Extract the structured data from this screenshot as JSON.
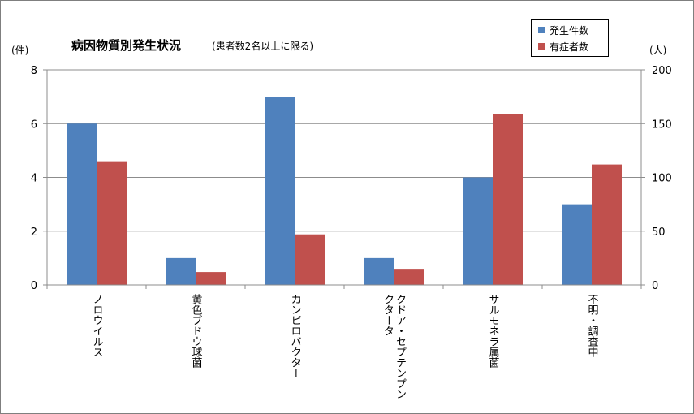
{
  "chart_data": {
    "type": "bar",
    "title": "病因物質別発生状況",
    "subtitle": "(患者数2名以上に限る)",
    "y_left_unit": "(件)",
    "y_right_unit": "(人)",
    "categories": [
      {
        "label": "ノロウイルス",
        "lines": [
          "ノロウイルス"
        ]
      },
      {
        "label": "黄色ブドウ球菌",
        "lines": [
          "黄色ブドウ球菌"
        ]
      },
      {
        "label": "カンピロバクター",
        "lines": [
          "カンピロバクター"
        ]
      },
      {
        "label": "クドア・セプテンプンクタータ",
        "lines": [
          "クドア・セプテンプン",
          "クタータ"
        ]
      },
      {
        "label": "サルモネラ属菌",
        "lines": [
          "サルモネラ属菌"
        ]
      },
      {
        "label": "不明・調査中",
        "lines": [
          "不明・調査中"
        ]
      }
    ],
    "series": [
      {
        "name": "発生件数",
        "axis": "left",
        "color": "#4f81bd",
        "values": [
          6,
          1,
          7,
          1,
          4,
          3
        ]
      },
      {
        "name": "有症者数",
        "axis": "right",
        "color": "#c0504d",
        "values": [
          115,
          12,
          47,
          15,
          159,
          112
        ]
      }
    ],
    "y_left": {
      "min": 0,
      "max": 8,
      "ticks": [
        0,
        2,
        4,
        6,
        8
      ]
    },
    "y_right": {
      "min": 0,
      "max": 200,
      "ticks": [
        0,
        50,
        100,
        150,
        200
      ]
    },
    "grid": true,
    "legend_position": "top-right"
  }
}
